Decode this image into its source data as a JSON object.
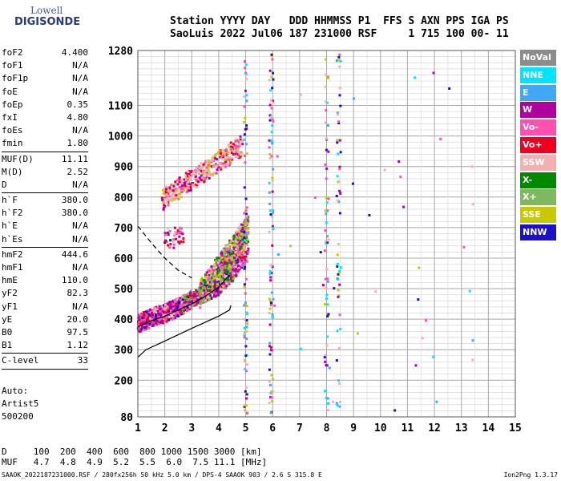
{
  "logo": {
    "line1": "Lowell",
    "line2": "DIGISONDE"
  },
  "header": {
    "line1": "Station YYYY DAY   DDD HHMMSS P1  FFS S AXN PPS IGA PS",
    "line2": "SaoLuis 2022 Jul06 187 231000 RSF     1 715 100 00- 11"
  },
  "params_groups": [
    [
      [
        "foF2",
        "4.400"
      ],
      [
        "foF1",
        "N/A"
      ],
      [
        "foF1p",
        "N/A"
      ],
      [
        "foE",
        "N/A"
      ],
      [
        "foEp",
        "0.35"
      ],
      [
        "fxI",
        "4.80"
      ],
      [
        "foEs",
        "N/A"
      ],
      [
        "fmin",
        "1.80"
      ]
    ],
    [
      [
        "MUF(D)",
        "11.11"
      ],
      [
        "M(D)",
        "2.52"
      ],
      [
        "D",
        "N/A"
      ]
    ],
    [
      [
        "h`F",
        "380.0"
      ],
      [
        "h`F2",
        "380.0"
      ],
      [
        "h`E",
        "N/A"
      ],
      [
        "h`Es",
        "N/A"
      ]
    ],
    [
      [
        "hmF2",
        "444.6"
      ],
      [
        "hmF1",
        "N/A"
      ],
      [
        "hmE",
        "110.0"
      ],
      [
        "yF2",
        "82.3"
      ],
      [
        "yF1",
        "N/A"
      ],
      [
        "yE",
        "20.0"
      ],
      [
        "B0",
        "97.5"
      ],
      [
        "B1",
        "1.12"
      ]
    ],
    [
      [
        "C-level",
        "33"
      ]
    ]
  ],
  "auto": {
    "line1": "Auto:",
    "line2": "Artist5",
    "line3": "500200"
  },
  "legend": [
    {
      "label": "NoVal",
      "color": "#8c8c8c"
    },
    {
      "label": "NNE",
      "color": "#00e5ff"
    },
    {
      "label": "E",
      "color": "#3fa9f5"
    },
    {
      "label": "W",
      "color": "#b0009e"
    },
    {
      "label": "Vo-",
      "color": "#ff4fb0"
    },
    {
      "label": "Vo+",
      "color": "#ee0022"
    },
    {
      "label": "SSW",
      "color": "#f4b0b0"
    },
    {
      "label": "X-",
      "color": "#008800"
    },
    {
      "label": "X+",
      "color": "#80b860"
    },
    {
      "label": "SSE",
      "color": "#c8c800"
    },
    {
      "label": "NNW",
      "color": "#1a10c8"
    }
  ],
  "bottom": {
    "line1": "D     100  200  400  600  800 1000 1500 3000 [km]",
    "line2": "MUF   4.7  4.8  4.9  5.2  5.5  6.0  7.5 11.1 [MHz]"
  },
  "footer": {
    "left": "SAAOK_2022187231000.RSF / 280fx256h 50 kHz 5.0 km / DPS-4 SAAOK 903 / 2.6 S 315.8 E",
    "right": "Ion2Png 1.3.17"
  },
  "chart_data": {
    "type": "scatter",
    "xlim": [
      1,
      15
    ],
    "ylim": [
      80,
      1280
    ],
    "x_ticks": [
      1,
      2,
      3,
      4,
      5,
      6,
      7,
      8,
      9,
      10,
      11,
      12,
      13,
      14,
      15
    ],
    "y_ticks": [
      80,
      200,
      300,
      400,
      500,
      600,
      700,
      800,
      900,
      1000,
      1100,
      1280
    ],
    "vertical_lines": [
      5.95,
      8.0,
      8.45
    ],
    "profile_curve": [
      [
        1,
        275
      ],
      [
        1.3,
        300
      ],
      [
        1.8,
        320
      ],
      [
        2.4,
        345
      ],
      [
        3.0,
        370
      ],
      [
        3.5,
        390
      ],
      [
        4.0,
        410
      ],
      [
        4.4,
        430
      ],
      [
        4.45,
        445
      ]
    ],
    "o_trace": [
      [
        1.0,
        375
      ],
      [
        1.5,
        395
      ],
      [
        2.0,
        410
      ],
      [
        2.5,
        430
      ],
      [
        3.0,
        455
      ],
      [
        3.5,
        480
      ],
      [
        4.0,
        510
      ],
      [
        4.5,
        560
      ],
      [
        5.0,
        640
      ],
      [
        5.1,
        660
      ]
    ],
    "model_trace_dashed": [
      [
        1.0,
        705
      ],
      [
        1.5,
        650
      ],
      [
        2.0,
        600
      ],
      [
        2.5,
        560
      ],
      [
        2.8,
        545
      ],
      [
        3.0,
        535
      ]
    ],
    "model_trace_solid": [
      [
        1.0,
        375
      ],
      [
        1.5,
        395
      ],
      [
        2.0,
        410
      ],
      [
        2.5,
        430
      ],
      [
        3.0,
        450
      ],
      [
        3.5,
        475
      ],
      [
        4.0,
        505
      ],
      [
        4.4,
        545
      ]
    ],
    "echo_clusters": [
      {
        "x": [
          1.0,
          3.6
        ],
        "y": [
          375,
          520
        ],
        "density": "high",
        "kind": "o"
      },
      {
        "x": [
          3.0,
          5.1
        ],
        "y": [
          420,
          720
        ],
        "density": "high",
        "kind": "x"
      },
      {
        "x": [
          1.9,
          4.9
        ],
        "y": [
          790,
          1010
        ],
        "density": "medium",
        "kind": "2hop"
      },
      {
        "x": [
          2.0,
          2.7
        ],
        "y": [
          630,
          700
        ],
        "density": "low",
        "kind": "o"
      }
    ]
  }
}
